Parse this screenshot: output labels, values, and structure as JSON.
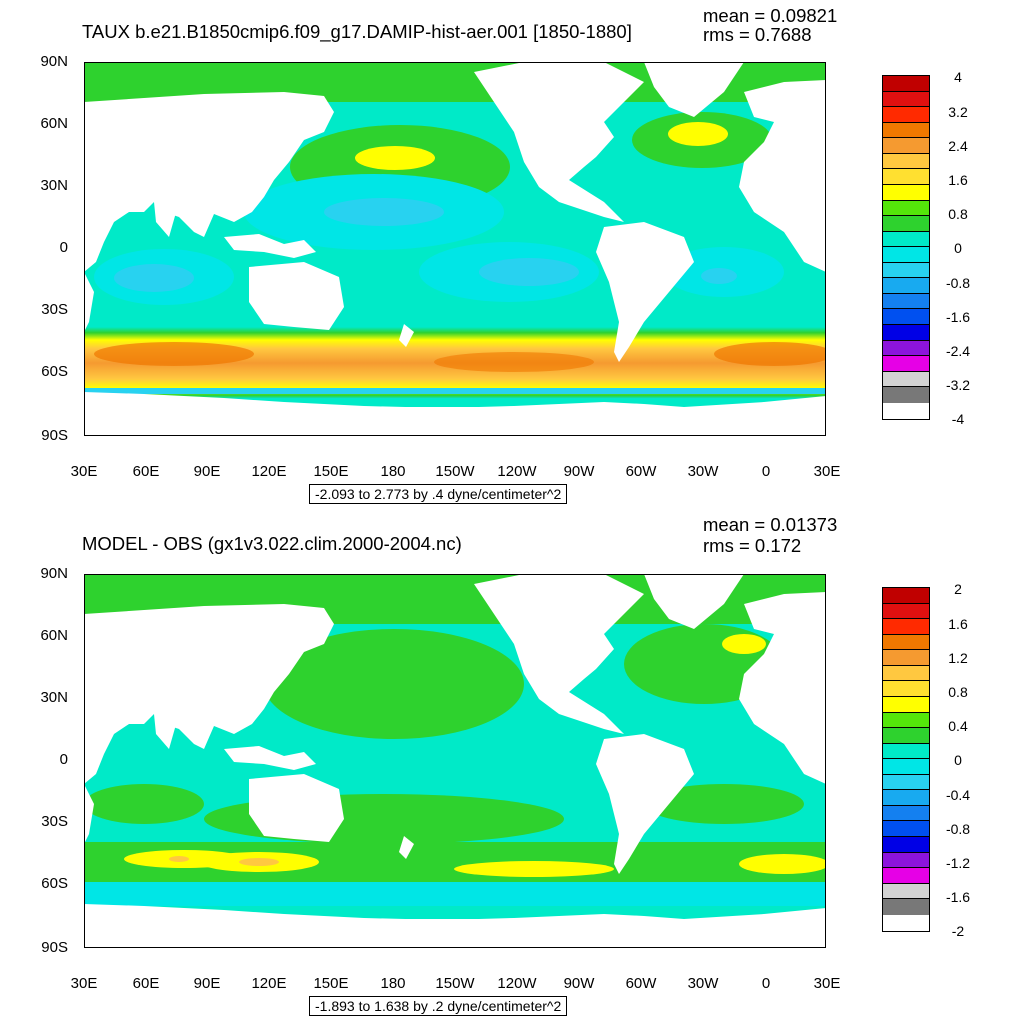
{
  "panels": [
    {
      "title": "TAUX b.e21.B1850cmip6.f09_g17.DAMIP-hist-aer.001 [1850-1880]",
      "mean": "mean = 0.09821",
      "rms": "rms = 0.7688",
      "range_label": "-2.093 to 2.773 by .4 dyne/centimeter^2",
      "colorbar_labels": [
        "4",
        "3.2",
        "2.4",
        "1.6",
        "0.8",
        "0",
        "-0.8",
        "-1.6",
        "-2.4",
        "-3.2",
        "-4"
      ],
      "colorbar_colors": [
        "#c00000",
        "#e01010",
        "#ff2a00",
        "#f07800",
        "#f59a30",
        "#ffc840",
        "#ffe030",
        "#ffff00",
        "#54e60a",
        "#2ed22e",
        "#00eac8",
        "#00e6e6",
        "#28d2f0",
        "#18aaf0",
        "#1480f0",
        "#0050f0",
        "#0000e6",
        "#8c14dc",
        "#e600e6",
        "#d2d2d2",
        "#787878"
      ]
    },
    {
      "title": "MODEL - OBS (gx1v3.022.clim.2000-2004.nc)",
      "mean": "mean = 0.01373",
      "rms": "rms = 0.172",
      "range_label": "-1.893 to 1.638 by .2 dyne/centimeter^2",
      "colorbar_labels": [
        "2",
        "1.6",
        "1.2",
        "0.8",
        "0.4",
        "0",
        "-0.4",
        "-0.8",
        "-1.2",
        "-1.6",
        "-2"
      ],
      "colorbar_colors": [
        "#c00000",
        "#e01010",
        "#ff2a00",
        "#f07800",
        "#f59a30",
        "#ffc840",
        "#ffe030",
        "#ffff00",
        "#54e60a",
        "#2ed22e",
        "#00eac8",
        "#00e6e6",
        "#28d2f0",
        "#18aaf0",
        "#1480f0",
        "#0050f0",
        "#0000e6",
        "#8c14dc",
        "#e600e6",
        "#d2d2d2",
        "#787878"
      ]
    }
  ],
  "lat_labels": [
    "90N",
    "60N",
    "30N",
    "0",
    "30S",
    "60S",
    "90S"
  ],
  "lon_labels": [
    "30E",
    "60E",
    "90E",
    "120E",
    "150E",
    "180",
    "150W",
    "120W",
    "90W",
    "60W",
    "30W",
    "0",
    "30E"
  ]
}
